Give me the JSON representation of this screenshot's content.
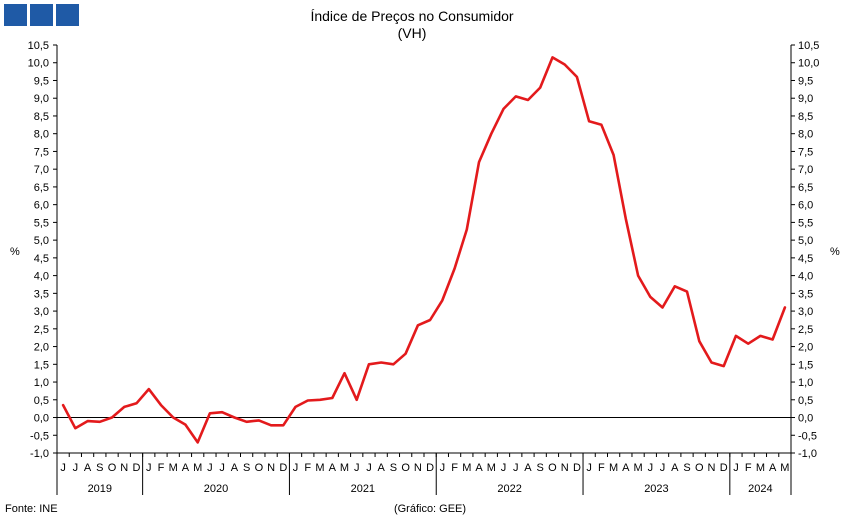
{
  "chart_data": {
    "type": "line",
    "title": "Índice de Preços no Consumidor",
    "subtitle": "(VH)",
    "ylabel_left": "%",
    "ylabel_right": "%",
    "ylim": [
      -1.0,
      10.5
    ],
    "yticks": [
      -1.0,
      -0.5,
      0.0,
      0.5,
      1.0,
      1.5,
      2.0,
      2.5,
      3.0,
      3.5,
      4.0,
      4.5,
      5.0,
      5.5,
      6.0,
      6.5,
      7.0,
      7.5,
      8.0,
      8.5,
      9.0,
      9.5,
      10.0,
      10.5
    ],
    "ytick_labels": [
      "-1,0",
      "-0,5",
      "0,0",
      "0,5",
      "1,0",
      "1,5",
      "2,0",
      "2,5",
      "3,0",
      "3,5",
      "4,0",
      "4,5",
      "5,0",
      "5,5",
      "6,0",
      "6,5",
      "7,0",
      "7,5",
      "8,0",
      "8,5",
      "9,0",
      "9,5",
      "10,0",
      "10,5"
    ],
    "months": [
      "J",
      "J",
      "A",
      "S",
      "O",
      "N",
      "D",
      "J",
      "F",
      "M",
      "A",
      "M",
      "J",
      "J",
      "A",
      "S",
      "O",
      "N",
      "D",
      "J",
      "F",
      "M",
      "A",
      "M",
      "J",
      "J",
      "A",
      "S",
      "O",
      "N",
      "D",
      "J",
      "F",
      "M",
      "A",
      "M",
      "J",
      "J",
      "A",
      "S",
      "O",
      "N",
      "D",
      "J",
      "F",
      "M",
      "A",
      "M",
      "J",
      "J",
      "A",
      "S",
      "O",
      "N",
      "D",
      "J",
      "F",
      "M",
      "A",
      "M"
    ],
    "years": [
      {
        "label": "2019",
        "start": 0,
        "count": 7
      },
      {
        "label": "2020",
        "start": 7,
        "count": 12
      },
      {
        "label": "2021",
        "start": 19,
        "count": 12
      },
      {
        "label": "2022",
        "start": 31,
        "count": 12
      },
      {
        "label": "2023",
        "start": 43,
        "count": 12
      },
      {
        "label": "2024",
        "start": 55,
        "count": 5
      }
    ],
    "series": [
      {
        "color": "#e31a1c",
        "values": [
          0.35,
          -0.3,
          -0.1,
          -0.12,
          0.0,
          0.3,
          0.4,
          0.8,
          0.35,
          0.0,
          -0.2,
          -0.7,
          0.12,
          0.15,
          0.0,
          -0.12,
          -0.08,
          -0.22,
          -0.22,
          0.3,
          0.48,
          0.5,
          0.55,
          1.25,
          0.5,
          1.5,
          1.55,
          1.5,
          1.8,
          2.6,
          2.75,
          3.3,
          4.2,
          5.3,
          7.2,
          8.0,
          8.7,
          9.05,
          8.95,
          9.3,
          10.15,
          9.95,
          9.6,
          8.35,
          8.25,
          7.4,
          5.6,
          4.0,
          3.4,
          3.1,
          3.7,
          3.55,
          2.15,
          1.55,
          1.45,
          2.3,
          2.08,
          2.3,
          2.2,
          3.1
        ]
      }
    ],
    "grid": false,
    "legend": "none"
  },
  "footer": {
    "source": "Fonte: INE",
    "credit": "(Gráfico: GEE)"
  }
}
